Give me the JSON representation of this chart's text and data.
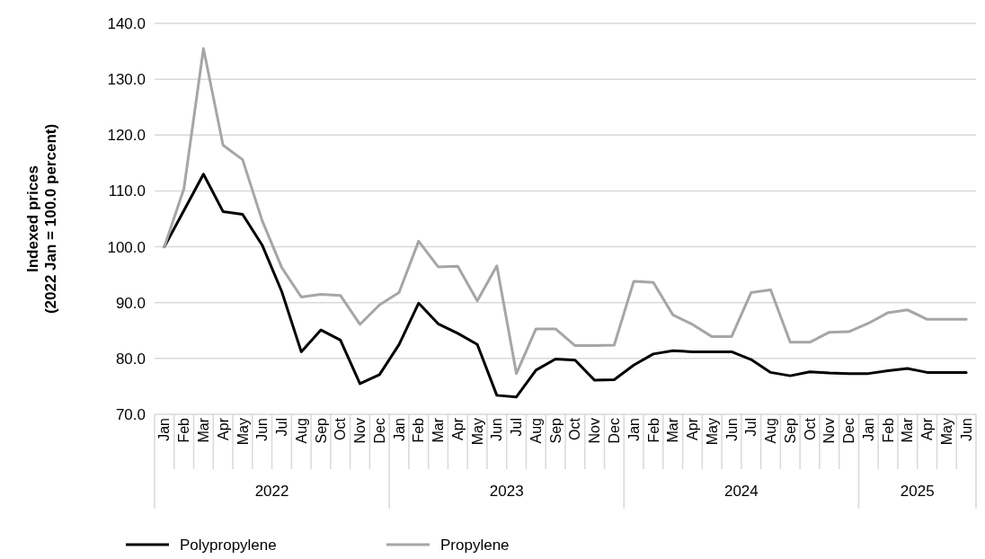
{
  "chart_data": {
    "type": "line",
    "ylabel": "Indexed prices\n(2022 Jan = 100.0 percent)",
    "categories": [
      "Jan",
      "Feb",
      "Mar",
      "Apr",
      "May",
      "Jun",
      "Jul",
      "Aug",
      "Sep",
      "Oct",
      "Nov",
      "Dec",
      "Jan",
      "Feb",
      "Mar",
      "Apr",
      "May",
      "Jun",
      "Jul",
      "Aug",
      "Sep",
      "Oct",
      "Nov",
      "Dec",
      "Jan",
      "Feb",
      "Mar",
      "Apr",
      "May",
      "Jun",
      "Jul",
      "Aug",
      "Sep",
      "Oct",
      "Nov",
      "Dec",
      "Jan",
      "Feb",
      "Mar",
      "Apr",
      "May",
      "Jun"
    ],
    "annotations": [
      "2022",
      "2023",
      "2024",
      "2025"
    ],
    "series": [
      {
        "name": "Polypropylene",
        "color": "#000000",
        "values": [
          100.0,
          106.5,
          113.0,
          106.3,
          105.8,
          100.3,
          92.0,
          81.2,
          85.1,
          83.3,
          75.5,
          77.1,
          82.5,
          89.9,
          86.2,
          84.5,
          82.5,
          73.4,
          73.1,
          77.9,
          79.9,
          79.7,
          76.1,
          76.2,
          78.8,
          80.8,
          81.4,
          81.2,
          81.2,
          81.2,
          79.8,
          77.5,
          76.9,
          77.6,
          77.4,
          77.3,
          77.3,
          77.8,
          78.2,
          77.5,
          77.5,
          77.5
        ]
      },
      {
        "name": "Propylene",
        "color": "#a6a6a6",
        "values": [
          100.0,
          110.4,
          135.5,
          118.2,
          115.6,
          104.7,
          96.3,
          91.0,
          91.5,
          91.3,
          86.1,
          89.6,
          91.8,
          101.0,
          96.4,
          96.5,
          90.3,
          96.6,
          77.3,
          85.3,
          85.3,
          82.3,
          82.3,
          82.4,
          93.8,
          93.6,
          87.8,
          86.1,
          83.9,
          83.9,
          91.8,
          92.3,
          82.9,
          82.9,
          84.7,
          84.8,
          86.3,
          88.2,
          88.7,
          87.0,
          87.0,
          87.0
        ]
      }
    ],
    "ylim": [
      70,
      140
    ],
    "yticks": [
      {
        "value": 70,
        "label": "70.0"
      },
      {
        "value": 80,
        "label": "80.0"
      },
      {
        "value": 90,
        "label": "90.0"
      },
      {
        "value": 100,
        "label": "100.0"
      },
      {
        "value": 110,
        "label": "110.0"
      },
      {
        "value": 120,
        "label": "120.0"
      },
      {
        "value": 130,
        "label": "130.0"
      },
      {
        "value": 140,
        "label": "140.0"
      }
    ],
    "grid": "y",
    "legend": "bottom left"
  }
}
